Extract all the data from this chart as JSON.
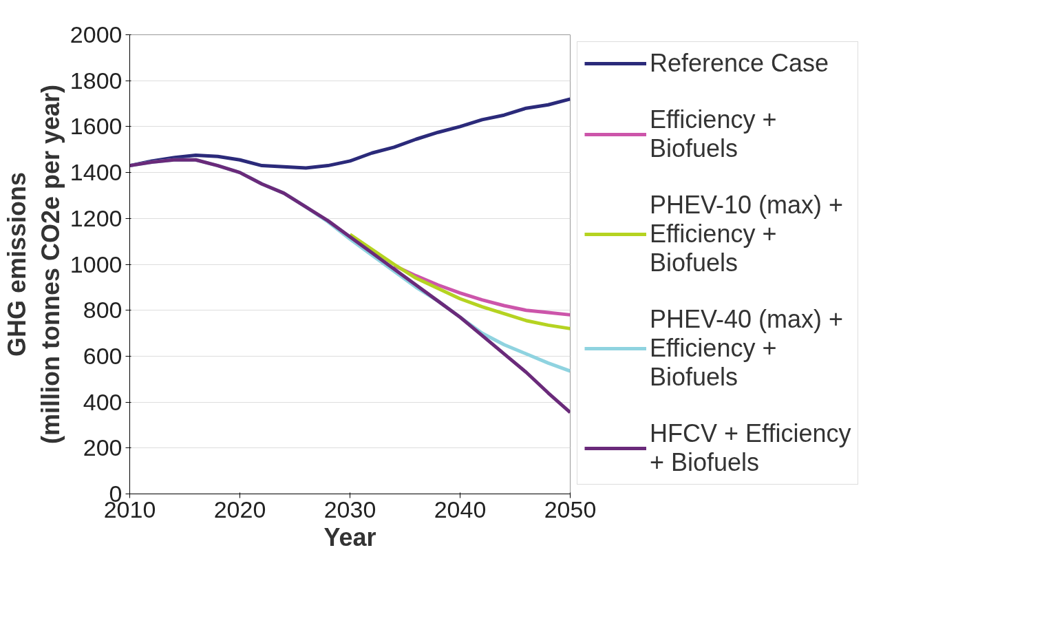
{
  "chart_data": {
    "type": "line",
    "xlabel": "Year",
    "ylabel": "GHG emissions\n(million tonnes CO2e per year)",
    "x": [
      2010,
      2012,
      2014,
      2016,
      2018,
      2020,
      2022,
      2024,
      2026,
      2028,
      2030,
      2032,
      2034,
      2036,
      2038,
      2040,
      2042,
      2044,
      2046,
      2048,
      2050
    ],
    "series": [
      {
        "name": "Reference Case",
        "color": "#2b2a7a",
        "values": [
          1430,
          1450,
          1465,
          1475,
          1470,
          1455,
          1430,
          1425,
          1420,
          1430,
          1450,
          1485,
          1510,
          1545,
          1575,
          1600,
          1630,
          1650,
          1680,
          1695,
          1720
        ]
      },
      {
        "name": "Efficiency + Biofuels",
        "color": "#cc55aa",
        "values": [
          null,
          null,
          null,
          null,
          null,
          null,
          null,
          null,
          null,
          null,
          null,
          null,
          995,
          950,
          910,
          875,
          845,
          820,
          800,
          790,
          780
        ]
      },
      {
        "name": "PHEV-10 (max) + Efficiency + Biofuels",
        "color": "#b5d321",
        "values": [
          null,
          null,
          null,
          null,
          null,
          null,
          null,
          null,
          null,
          null,
          1130,
          1065,
          1000,
          940,
          895,
          850,
          815,
          785,
          755,
          735,
          720
        ]
      },
      {
        "name": "PHEV-40 (max) + Efficiency + Biofuels",
        "color": "#8fd3e0",
        "values": [
          1430,
          1445,
          1455,
          1455,
          1430,
          1400,
          1350,
          1310,
          1250,
          1185,
          1110,
          1040,
          970,
          900,
          840,
          770,
          700,
          650,
          610,
          570,
          535
        ]
      },
      {
        "name": "HFCV + Efficiency + Biofuels",
        "color": "#6a2a7a",
        "values": [
          1430,
          1445,
          1455,
          1455,
          1430,
          1400,
          1350,
          1310,
          1250,
          1190,
          1120,
          1050,
          980,
          910,
          840,
          770,
          690,
          610,
          530,
          440,
          355
        ]
      }
    ],
    "xlim": [
      2010,
      2050
    ],
    "xticks": [
      2010,
      2020,
      2030,
      2040,
      2050
    ],
    "ylim": [
      0,
      2000
    ],
    "yticks": [
      0,
      200,
      400,
      600,
      800,
      1000,
      1200,
      1400,
      1600,
      1800,
      2000
    ],
    "grid": "y",
    "legend": "right",
    "marker": "none",
    "line_style": "solid"
  }
}
